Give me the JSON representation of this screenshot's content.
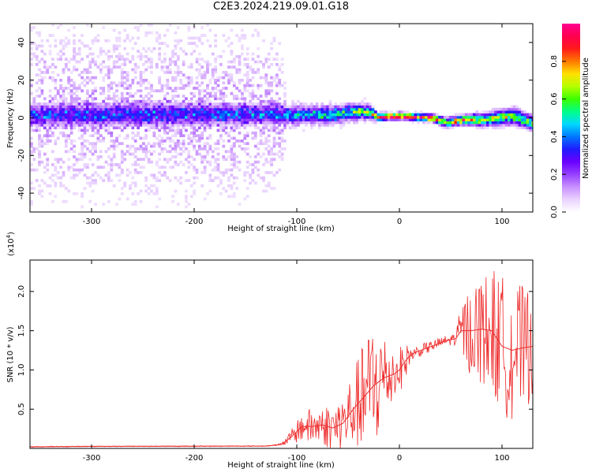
{
  "title": "C2E3.2024.219.09.01.G18",
  "colors": {
    "snr_line": "#ee2a2a",
    "background": "#ffffff",
    "colormap": [
      "#ffffff",
      "#e9d2ff",
      "#c890ff",
      "#9540ff",
      "#6a00ff",
      "#1f1cff",
      "#0077ff",
      "#00d8ff",
      "#00ff88",
      "#3cff00",
      "#b6ff00",
      "#ffe000",
      "#ff7a00",
      "#ff1a1a",
      "#ff004e",
      "#ff0090"
    ]
  },
  "chart_data": [
    {
      "type": "heatmap",
      "xlabel": "Height of straight line (km)",
      "ylabel": "Frequency (Hz)",
      "xlim": [
        -360,
        130
      ],
      "ylim": [
        -50,
        50
      ],
      "xticks": [
        -300,
        -200,
        -100,
        0,
        100
      ],
      "yticks": [
        -40,
        -20,
        0,
        20,
        40
      ],
      "xtick_labels": [
        "-300",
        "-200",
        "-100",
        "0",
        "100"
      ],
      "ytick_labels": [
        "-40",
        "-20",
        "0",
        "20",
        "40"
      ],
      "colorbar": {
        "label": "Normalized spectral amplitude",
        "range": [
          0.0,
          1.0
        ],
        "ticks": [
          0.0,
          0.2,
          0.4,
          0.6,
          0.8
        ],
        "tick_labels": [
          "0.0",
          "0.2",
          "0.4",
          "0.6",
          "0.8"
        ]
      },
      "ridge": [
        {
          "x": -360,
          "freq": 1.5,
          "peak": 0.3,
          "spread": 3.5,
          "scatter": 32
        },
        {
          "x": -200,
          "freq": 2.0,
          "peak": 0.3,
          "spread": 3.5,
          "scatter": 32
        },
        {
          "x": -120,
          "freq": 2.0,
          "peak": 0.32,
          "spread": 3.0,
          "scatter": 30
        },
        {
          "x": -110,
          "freq": 1.5,
          "peak": 0.4,
          "spread": 2.5,
          "scatter": 6
        },
        {
          "x": -70,
          "freq": 1.5,
          "peak": 0.45,
          "spread": 2.5,
          "scatter": 5
        },
        {
          "x": -40,
          "freq": 3.5,
          "peak": 0.55,
          "spread": 2.2,
          "scatter": 5
        },
        {
          "x": -30,
          "freq": 3.0,
          "peak": 0.6,
          "spread": 2.0,
          "scatter": 4
        },
        {
          "x": -22,
          "freq": 0.5,
          "peak": 0.95,
          "spread": 1.0,
          "scatter": 2
        },
        {
          "x": 0,
          "freq": 1.0,
          "peak": 0.95,
          "spread": 1.0,
          "scatter": 2
        },
        {
          "x": 30,
          "freq": 0.0,
          "peak": 0.95,
          "spread": 1.0,
          "scatter": 2
        },
        {
          "x": 45,
          "freq": -2.5,
          "peak": 0.6,
          "spread": 1.5,
          "scatter": 2
        },
        {
          "x": 60,
          "freq": -1.0,
          "peak": 0.85,
          "spread": 1.3,
          "scatter": 2
        },
        {
          "x": 80,
          "freq": -1.0,
          "peak": 0.6,
          "spread": 2.0,
          "scatter": 3
        },
        {
          "x": 110,
          "freq": 1.0,
          "peak": 0.55,
          "spread": 2.5,
          "scatter": 3
        },
        {
          "x": 130,
          "freq": -3.0,
          "peak": 0.6,
          "spread": 2.0,
          "scatter": 3
        }
      ]
    },
    {
      "type": "line",
      "xlabel": "Height of straight line (km)",
      "ylabel": "SNR (10 * v/v)",
      "multiplier_label": "(x10",
      "multiplier_exponent": "4",
      "multiplier_close": ")",
      "xlim": [
        -360,
        130
      ],
      "ylim": [
        0,
        24000
      ],
      "xticks": [
        -300,
        -200,
        -100,
        0,
        100
      ],
      "yticks": [
        5000,
        10000,
        15000,
        20000
      ],
      "xtick_labels": [
        "-300",
        "-200",
        "-100",
        "0",
        "100"
      ],
      "ytick_labels": [
        "0.5",
        "1.0",
        "1.5",
        "2.0"
      ],
      "x": [
        -360,
        -300,
        -200,
        -130,
        -115,
        -105,
        -95,
        -85,
        -75,
        -65,
        -55,
        -45,
        -35,
        -25,
        -15,
        -5,
        0,
        5,
        10,
        15,
        25,
        35,
        45,
        55,
        60,
        70,
        80,
        90,
        100,
        110,
        120,
        130
      ],
      "y": [
        200,
        260,
        280,
        300,
        500,
        1500,
        2800,
        2800,
        3000,
        2600,
        3200,
        5000,
        6500,
        8000,
        9000,
        9500,
        10000,
        11000,
        11800,
        12200,
        12700,
        13200,
        13700,
        14000,
        15000,
        15000,
        15200,
        15000,
        13000,
        12500,
        12800,
        13000
      ],
      "envelope": [
        0,
        0,
        0,
        0,
        150,
        900,
        2000,
        2400,
        2600,
        3000,
        4000,
        5000,
        7000,
        9000,
        6000,
        3500,
        3000,
        2500,
        1200,
        800,
        800,
        700,
        700,
        900,
        3500,
        6000,
        7000,
        8000,
        9000,
        9000,
        8000,
        7000
      ]
    }
  ]
}
